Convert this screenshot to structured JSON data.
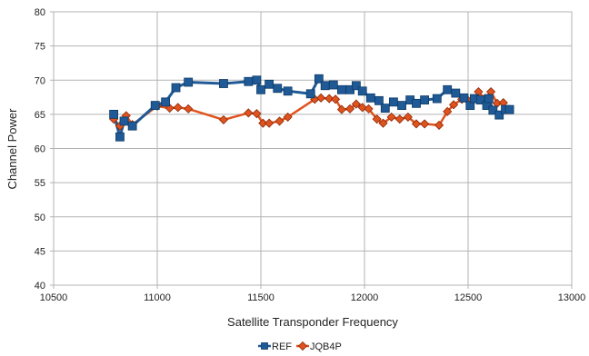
{
  "chart_data": {
    "type": "line",
    "title": "",
    "xlabel": "Satellite Transponder Frequency",
    "ylabel": "Channel Power",
    "xlim": [
      10500,
      13000
    ],
    "ylim": [
      40,
      80
    ],
    "xticks": [
      "10500",
      "11000",
      "11500",
      "12000",
      "12500",
      "13000"
    ],
    "yticks": [
      "40",
      "45",
      "50",
      "55",
      "60",
      "65",
      "70",
      "75",
      "80"
    ],
    "grid": true,
    "legend_position": "bottom",
    "series": [
      {
        "name": "REF",
        "color": "#1f5a96",
        "marker": "square",
        "x": [
          10790,
          10820,
          10840,
          10880,
          10990,
          11040,
          11090,
          11150,
          11320,
          11440,
          11480,
          11500,
          11540,
          11580,
          11630,
          11740,
          11780,
          11810,
          11850,
          11890,
          11930,
          11960,
          11990,
          12030,
          12070,
          12100,
          12140,
          12180,
          12220,
          12250,
          12290,
          12350,
          12400,
          12440,
          12480,
          12510,
          12530,
          12560,
          12590,
          12600,
          12620,
          12650,
          12680,
          12700
        ],
        "y": [
          65.0,
          61.7,
          64.0,
          63.3,
          66.3,
          66.8,
          68.9,
          69.7,
          69.5,
          69.8,
          70.0,
          68.6,
          69.4,
          68.8,
          68.4,
          68.0,
          70.2,
          69.2,
          69.3,
          68.6,
          68.6,
          69.2,
          68.4,
          67.4,
          67.0,
          65.9,
          66.8,
          66.3,
          67.1,
          66.6,
          67.1,
          67.3,
          68.6,
          68.1,
          67.4,
          66.3,
          67.3,
          67.1,
          66.3,
          67.3,
          65.6,
          64.9,
          65.7,
          65.7
        ],
        "values": [
          65.0,
          61.7,
          64.0,
          63.3,
          66.3,
          66.8,
          68.9,
          69.7,
          69.5,
          69.8,
          70.0,
          68.6,
          69.4,
          68.8,
          68.4,
          68.0,
          70.2,
          69.2,
          69.3,
          68.6,
          68.6,
          69.2,
          68.4,
          67.4,
          67.0,
          65.9,
          66.8,
          66.3,
          67.1,
          66.6,
          67.1,
          67.3,
          68.6,
          68.1,
          67.4,
          66.3,
          67.3,
          67.1,
          66.3,
          67.3,
          65.6,
          64.9,
          65.7,
          65.7
        ]
      },
      {
        "name": "JQB4P",
        "color": "#e0531e",
        "marker": "diamond",
        "x": [
          10790,
          10820,
          10850,
          10880,
          11000,
          11060,
          11100,
          11150,
          11320,
          11440,
          11480,
          11510,
          11540,
          11590,
          11630,
          11760,
          11790,
          11830,
          11860,
          11890,
          11930,
          11960,
          11990,
          12020,
          12060,
          12090,
          12130,
          12170,
          12210,
          12250,
          12290,
          12360,
          12400,
          12430,
          12470,
          12500,
          12530,
          12550,
          12580,
          12610,
          12640,
          12670
        ],
        "y": [
          64.3,
          63.3,
          64.8,
          63.5,
          66.2,
          65.9,
          66.0,
          65.8,
          64.2,
          65.2,
          65.1,
          63.7,
          63.7,
          64.0,
          64.6,
          67.2,
          67.4,
          67.3,
          67.2,
          65.7,
          65.8,
          66.5,
          66.0,
          65.8,
          64.3,
          63.7,
          64.6,
          64.3,
          64.6,
          63.6,
          63.6,
          63.4,
          65.4,
          66.4,
          67.2,
          67.0,
          67.2,
          68.3,
          67.3,
          68.3,
          66.6,
          66.7
        ],
        "values": [
          64.3,
          63.3,
          64.8,
          63.5,
          66.2,
          65.9,
          66.0,
          65.8,
          64.2,
          65.2,
          65.1,
          63.7,
          63.7,
          64.0,
          64.6,
          67.2,
          67.4,
          67.3,
          67.2,
          65.7,
          65.8,
          66.5,
          66.0,
          65.8,
          64.3,
          63.7,
          64.6,
          64.3,
          64.6,
          63.6,
          63.6,
          63.4,
          65.4,
          66.4,
          67.2,
          67.0,
          67.2,
          68.3,
          67.3,
          68.3,
          66.6,
          66.7
        ]
      }
    ]
  }
}
